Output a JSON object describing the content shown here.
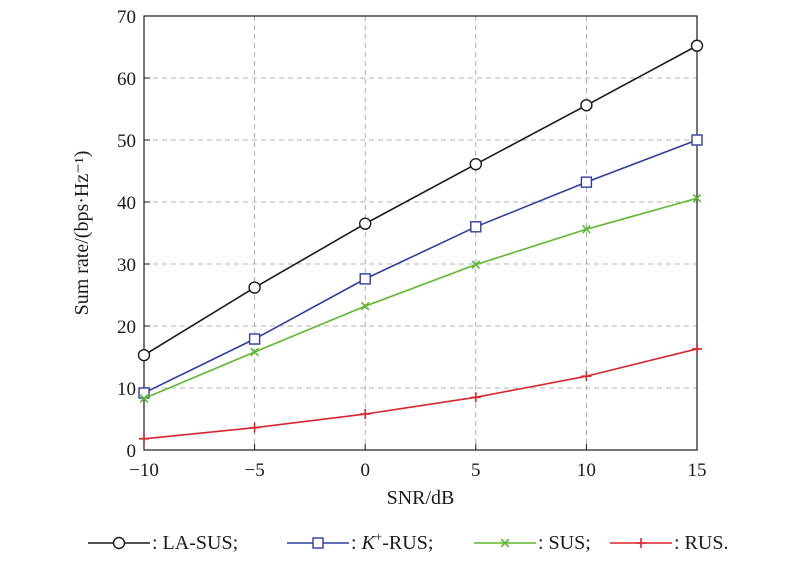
{
  "chart_data": {
    "type": "line",
    "xlabel": "SNR/dB",
    "ylabel": "Sum rate/(bps·Hz⁻¹)",
    "xlim": [
      -10,
      15
    ],
    "ylim": [
      0,
      70
    ],
    "x_ticks": [
      -10,
      -5,
      0,
      5,
      10,
      15
    ],
    "y_ticks": [
      0,
      10,
      20,
      30,
      40,
      50,
      60,
      70
    ],
    "x_tick_labels": [
      "−10",
      "−5",
      "0",
      "5",
      "10",
      "15"
    ],
    "y_tick_labels": [
      "0",
      "10",
      "20",
      "30",
      "40",
      "50",
      "60",
      "70"
    ],
    "grid": "dashed",
    "legend_position": "bottom",
    "x": [
      -10,
      -5,
      0,
      5,
      10,
      15
    ],
    "series": [
      {
        "name": "LA-SUS",
        "legend_label": ": LA-SUS;",
        "color": "#1a1a1a",
        "marker": "circle",
        "values": [
          15.3,
          26.2,
          36.5,
          46.1,
          55.6,
          65.2
        ]
      },
      {
        "name": "K⁺-RUS",
        "legend_label_italic": "K",
        "legend_label_sup": "+",
        "legend_label_rest": "-RUS;",
        "legend_label_prefix": ": ",
        "color": "#2e3f9e",
        "marker": "square",
        "values": [
          9.2,
          17.9,
          27.6,
          36.0,
          43.2,
          50.0
        ]
      },
      {
        "name": "SUS",
        "legend_label": ": SUS;",
        "color": "#5cb82e",
        "marker": "x",
        "values": [
          8.3,
          15.8,
          23.2,
          29.9,
          35.6,
          40.6
        ]
      },
      {
        "name": "RUS",
        "legend_label": ": RUS.",
        "color": "#d8262e",
        "marker": "plus",
        "values": [
          1.8,
          3.6,
          5.8,
          8.5,
          11.9,
          16.3
        ]
      }
    ]
  }
}
